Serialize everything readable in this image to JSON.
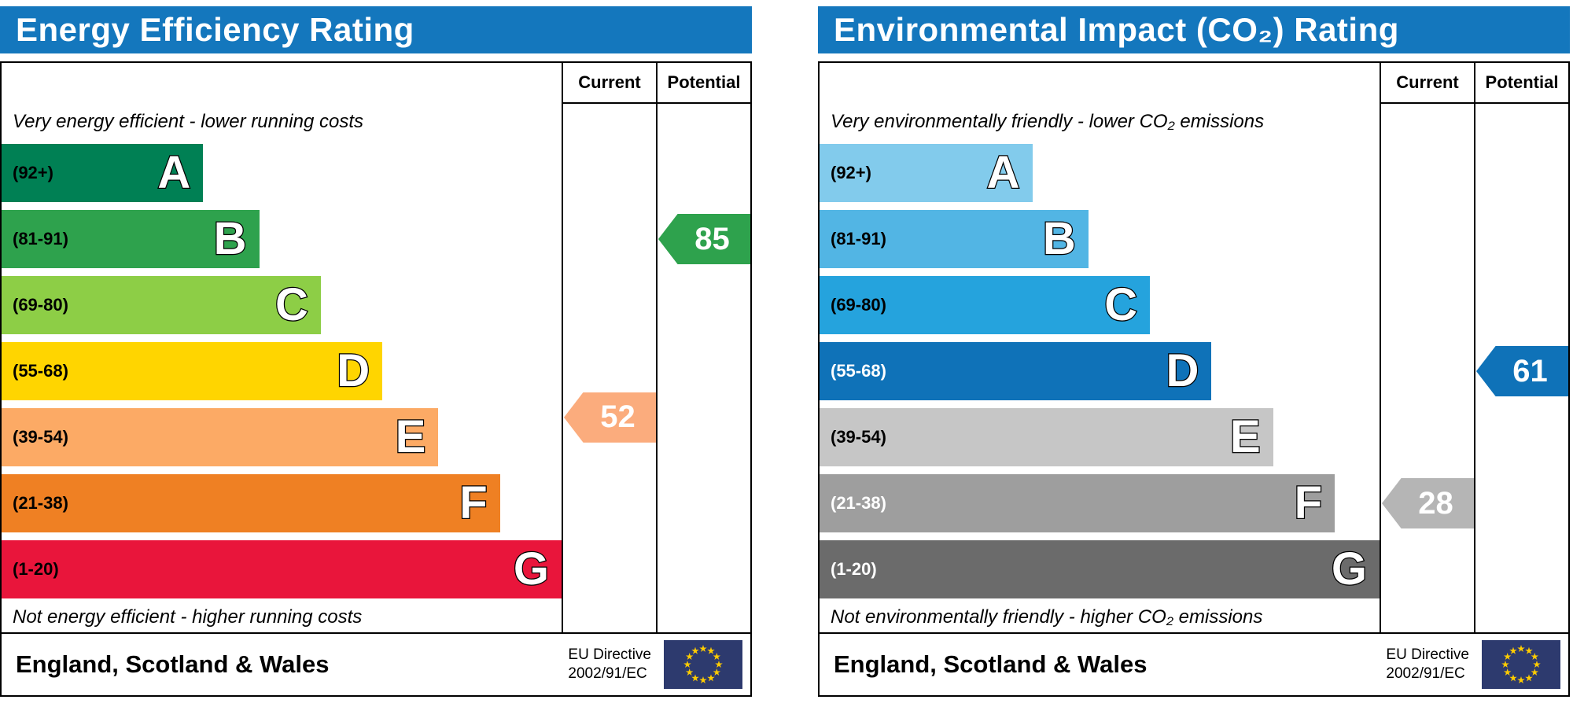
{
  "chart_data": [
    {
      "type": "bar",
      "id": "energy-efficiency",
      "title": "Energy Efficiency Rating",
      "columns": {
        "current": "Current",
        "potential": "Potential"
      },
      "top_caption": "Very energy efficient - lower running costs",
      "bottom_caption": "Not energy efficient - higher running costs",
      "bands": [
        {
          "letter": "A",
          "range": "(92+)",
          "color": "#008054",
          "length_pct": 36,
          "label_color": "#000000"
        },
        {
          "letter": "B",
          "range": "(81-91)",
          "color": "#2ea24d",
          "length_pct": 46,
          "label_color": "#000000"
        },
        {
          "letter": "C",
          "range": "(69-80)",
          "color": "#8dce46",
          "length_pct": 57,
          "label_color": "#000000"
        },
        {
          "letter": "D",
          "range": "(55-68)",
          "color": "#ffd500",
          "length_pct": 68,
          "label_color": "#000000"
        },
        {
          "letter": "E",
          "range": "(39-54)",
          "color": "#fcaa65",
          "length_pct": 78,
          "label_color": "#000000"
        },
        {
          "letter": "F",
          "range": "(21-38)",
          "color": "#ef8023",
          "length_pct": 89,
          "label_color": "#000000"
        },
        {
          "letter": "G",
          "range": "(1-20)",
          "color": "#e9153b",
          "length_pct": 100,
          "label_color": "#000000"
        }
      ],
      "current": {
        "value": 52,
        "band": "E",
        "color": "#fbac7d",
        "row_offset": -0.3
      },
      "potential": {
        "value": 85,
        "band": "B",
        "color": "#2ea24d",
        "row_offset": 0
      },
      "footer": {
        "region": "England, Scotland & Wales",
        "directive_line1": "EU Directive",
        "directive_line2": "2002/91/EC"
      }
    },
    {
      "type": "bar",
      "id": "environmental-impact-co2",
      "title": "Environmental Impact (CO₂) Rating",
      "columns": {
        "current": "Current",
        "potential": "Potential"
      },
      "top_caption": "Very environmentally friendly - lower CO₂ emissions",
      "bottom_caption": "Not environmentally friendly - higher CO₂ emissions",
      "bands": [
        {
          "letter": "A",
          "range": "(92+)",
          "color": "#82cbec",
          "length_pct": 38,
          "label_color": "#000000"
        },
        {
          "letter": "B",
          "range": "(81-91)",
          "color": "#52b5e4",
          "length_pct": 48,
          "label_color": "#000000"
        },
        {
          "letter": "C",
          "range": "(69-80)",
          "color": "#25a3dd",
          "length_pct": 59,
          "label_color": "#000000"
        },
        {
          "letter": "D",
          "range": "(55-68)",
          "color": "#0f72b8",
          "length_pct": 70,
          "label_color": "#ffffff"
        },
        {
          "letter": "E",
          "range": "(39-54)",
          "color": "#c6c6c6",
          "length_pct": 81,
          "label_color": "#000000"
        },
        {
          "letter": "F",
          "range": "(21-38)",
          "color": "#9e9e9e",
          "length_pct": 92,
          "label_color": "#ffffff"
        },
        {
          "letter": "G",
          "range": "(1-20)",
          "color": "#6b6b6b",
          "length_pct": 100,
          "label_color": "#ffffff"
        }
      ],
      "current": {
        "value": 28,
        "band": "F",
        "color": "#b5b5b5",
        "row_offset": 0
      },
      "potential": {
        "value": 61,
        "band": "D",
        "color": "#0f72b8",
        "row_offset": 0
      },
      "footer": {
        "region": "England, Scotland & Wales",
        "directive_line1": "EU Directive",
        "directive_line2": "2002/91/EC"
      }
    }
  ],
  "eu_flag": {
    "name": "eu-flag-icon",
    "background": "#2d3a6e",
    "star_color": "#ffcc00",
    "star_count": 12
  }
}
